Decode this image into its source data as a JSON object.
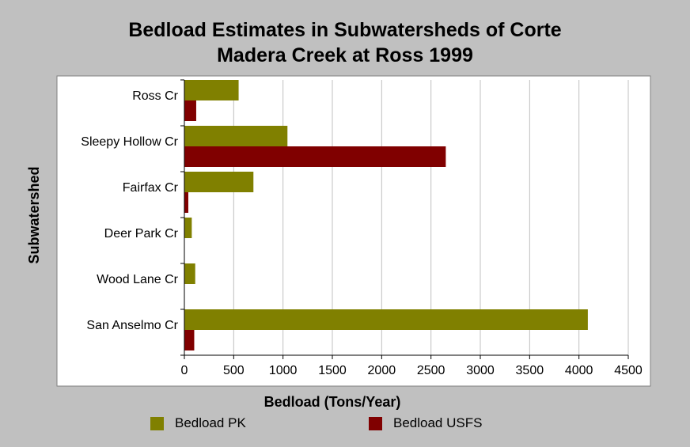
{
  "chart_data": {
    "type": "bar",
    "orientation": "horizontal",
    "title_line1": "Bedload Estimates in Subwatersheds of Corte",
    "title_line2": "Madera Creek at Ross 1999",
    "xlabel": "Bedload (Tons/Year)",
    "ylabel": "Subwatershed",
    "categories": [
      "Ross Cr",
      "Sleepy Hollow Cr",
      "Fairfax Cr",
      "Deer Park Cr",
      "Wood Lane Cr",
      "San Anselmo Cr"
    ],
    "series": [
      {
        "name": "Bedload PK",
        "color": "#808000",
        "values": [
          550,
          1045,
          700,
          75,
          110,
          4090
        ]
      },
      {
        "name": "Bedload USFS",
        "color": "#800000",
        "values": [
          120,
          2650,
          40,
          0,
          0,
          100
        ]
      }
    ],
    "xlim": [
      0,
      4500
    ],
    "xticks": [
      "0",
      "500",
      "1000",
      "1500",
      "2000",
      "2500",
      "3000",
      "3500",
      "4000",
      "4500"
    ],
    "grid": true,
    "legend_position": "bottom"
  },
  "colors": {
    "background": "#c0c0c0",
    "plot_background": "#ffffff",
    "gridline": "#c0c0c0"
  }
}
